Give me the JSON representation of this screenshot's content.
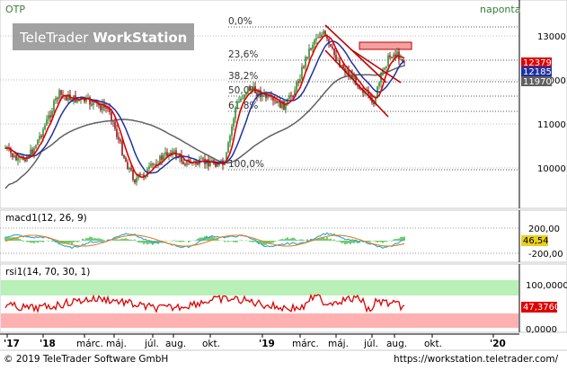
{
  "header": {
    "symbol": "OTP",
    "period": "naponta"
  },
  "watermark": {
    "text_light": "TeleTrader ",
    "text_bold": "WorkStation"
  },
  "colors": {
    "price_candle_up": "#2e8b2e",
    "price_candle_down": "#8b1a1a",
    "ma_short": "#e00000",
    "ma_mid": "#2030a0",
    "ma_long": "#606060",
    "resistance_box": "#f4a0a0",
    "rsi_overbought_zone": "#b8f0b8",
    "rsi_oversold_zone": "#ffb0b0",
    "macd_line": "#2aa0d0",
    "macd_signal": "#e08020",
    "macd_hist": "#50c050"
  },
  "price_panel": {
    "fib_levels": [
      {
        "label": "0,0%"
      },
      {
        "label": "23,6%"
      },
      {
        "label": "38,2%"
      },
      {
        "label": "50,0%"
      },
      {
        "label": "61,8%"
      },
      {
        "label": "100,0%"
      }
    ],
    "y_ticks": [
      "13000",
      "12000",
      "11000",
      "10000"
    ],
    "badges": [
      {
        "value": "12379",
        "bg": "#e00000"
      },
      {
        "value": "12185",
        "bg": "#2030a0"
      },
      {
        "value": "11970",
        "bg": "#606060"
      }
    ]
  },
  "macd_panel": {
    "label": "macd1(12, 26, 9)",
    "y_ticks": [
      "200,00",
      "-200,00"
    ],
    "badge": {
      "value": "46,54",
      "bg": "#e8d020"
    }
  },
  "rsi_panel": {
    "label": "rsi1(14, 70, 30, 1)",
    "y_ticks": [
      "100,0000",
      "0,0000"
    ],
    "badge": {
      "value": "47,3760",
      "bg": "#e00000"
    }
  },
  "x_axis": {
    "ticks": [
      "'17",
      "'18",
      "márc.",
      "máj.",
      "júl.",
      "aug.",
      "okt.",
      "'19",
      "márc.",
      "máj.",
      "júl.",
      "aug.",
      "okt.",
      "'20"
    ]
  },
  "footer": {
    "copyright": "© 2019 TeleTrader Software GmbH",
    "url": "https://workstation.teletrader.com/"
  }
}
